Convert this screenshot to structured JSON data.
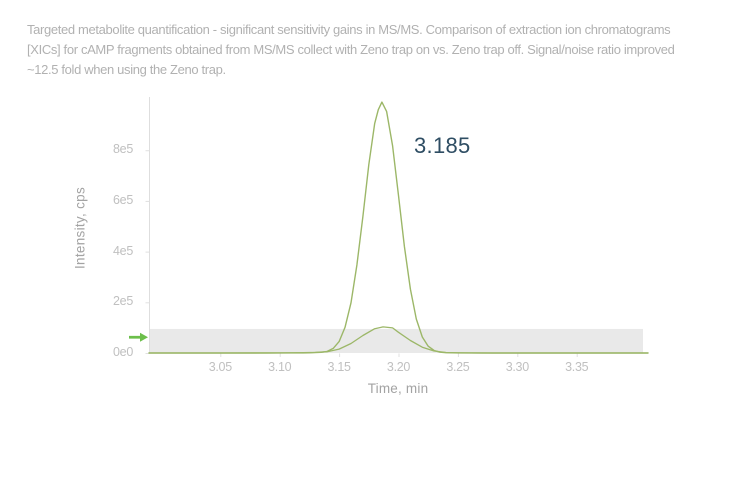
{
  "header": {
    "lines": [
      "Targeted metabolite quantification - significant sensitivity gains in MS/MS. Comparison of extraction ion chromatograms",
      "[XICs] for cAMP fragments obtained from MS/MS collect with Zeno trap on vs. Zeno trap off. Signal/noise ratio improved",
      "~12.5 fold when using the Zeno trap."
    ]
  },
  "chart_data": {
    "type": "line",
    "xlabel": "Time, min",
    "ylabel": "Intensity, cps",
    "xlim": [
      2.99,
      3.41
    ],
    "ylim": [
      0,
      1010000
    ],
    "grid": false,
    "legend": "none",
    "x_ticks": {
      "values": [
        3.05,
        3.1,
        3.15,
        3.2,
        3.25,
        3.3,
        3.35
      ],
      "labels": [
        "3.05",
        "3.10",
        "3.15",
        "3.20",
        "3.25",
        "3.30",
        "3.35"
      ]
    },
    "y_ticks": {
      "values": [
        0,
        200000,
        400000,
        600000,
        800000
      ],
      "labels": [
        "0e0",
        "2e5",
        "4e5",
        "6e5",
        "8e5"
      ]
    },
    "noise_band": {
      "from": 0,
      "to": 95000,
      "color": "#e9e9e9"
    },
    "annotations": {
      "peak_label": {
        "text": "3.185",
        "x": 3.185,
        "color": "#2e4d63"
      },
      "noise_arrow": {
        "y_value": 62000,
        "direction": "right",
        "color": "#6cbf4b"
      }
    },
    "axis_color": "#dedede",
    "tick_color": "#e0e0e0",
    "series": [
      {
        "name": "Zeno trap on",
        "color": "#9cb768",
        "peak_retention_time": 3.185,
        "peak_height": 990000,
        "points": [
          [
            2.99,
            0
          ],
          [
            3.0,
            0
          ],
          [
            3.03,
            0
          ],
          [
            3.06,
            0
          ],
          [
            3.09,
            0
          ],
          [
            3.11,
            200
          ],
          [
            3.12,
            400
          ],
          [
            3.125,
            700
          ],
          [
            3.13,
            1500
          ],
          [
            3.135,
            2800
          ],
          [
            3.14,
            6400
          ],
          [
            3.145,
            18000
          ],
          [
            3.15,
            45000
          ],
          [
            3.155,
            101000
          ],
          [
            3.16,
            198000
          ],
          [
            3.165,
            347000
          ],
          [
            3.17,
            539000
          ],
          [
            3.175,
            743000
          ],
          [
            3.18,
            906000
          ],
          [
            3.183,
            960000
          ],
          [
            3.186,
            990000
          ],
          [
            3.19,
            953000
          ],
          [
            3.195,
            817000
          ],
          [
            3.2,
            621000
          ],
          [
            3.205,
            420000
          ],
          [
            3.21,
            252000
          ],
          [
            3.215,
            134000
          ],
          [
            3.22,
            63000
          ],
          [
            3.225,
            27000
          ],
          [
            3.23,
            10000
          ],
          [
            3.235,
            3300
          ],
          [
            3.24,
            1000
          ],
          [
            3.25,
            300
          ],
          [
            3.27,
            0
          ],
          [
            3.3,
            0
          ],
          [
            3.35,
            0
          ],
          [
            3.41,
            0
          ]
        ]
      },
      {
        "name": "Zeno trap off",
        "color": "#9cb768",
        "peak_retention_time": 3.187,
        "peak_height": 103000,
        "points": [
          [
            2.99,
            0
          ],
          [
            3.0,
            0
          ],
          [
            3.05,
            0
          ],
          [
            3.1,
            300
          ],
          [
            3.11,
            600
          ],
          [
            3.12,
            1200
          ],
          [
            3.13,
            2500
          ],
          [
            3.14,
            5000
          ],
          [
            3.15,
            15500
          ],
          [
            3.16,
            37500
          ],
          [
            3.17,
            69000
          ],
          [
            3.18,
            96000
          ],
          [
            3.187,
            103000
          ],
          [
            3.195,
            99000
          ],
          [
            3.2,
            81500
          ],
          [
            3.21,
            49500
          ],
          [
            3.22,
            23000
          ],
          [
            3.23,
            8000
          ],
          [
            3.24,
            2100
          ],
          [
            3.25,
            600
          ],
          [
            3.26,
            200
          ],
          [
            3.28,
            0
          ],
          [
            3.32,
            0
          ],
          [
            3.41,
            0
          ]
        ]
      }
    ]
  }
}
